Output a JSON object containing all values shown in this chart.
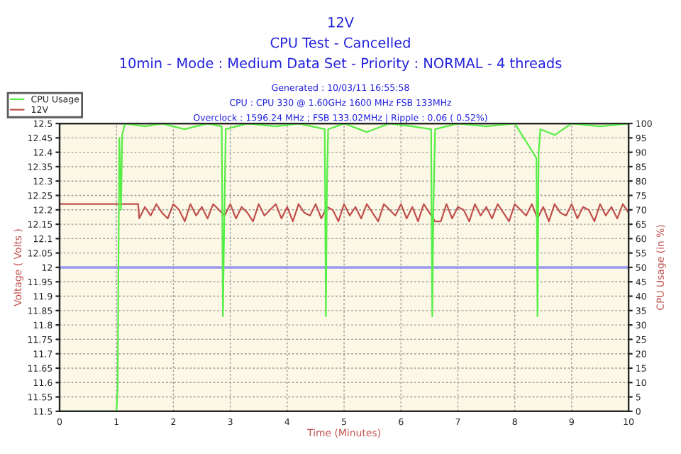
{
  "chart_data": {
    "type": "line",
    "title": "12V",
    "subtitle": "CPU Test - Cancelled",
    "annotations": [
      "10min - Mode : Medium Data Set - Priority : NORMAL - 4 threads",
      "Generated : 10/03/11 16:55:58",
      "CPU : CPU 330 @ 1.60GHz 1600 MHz FSB 133MHz",
      "Overclock : 1596.24 MHz ; FSB 133.02MHz | Ripple : 0.06 ( 0.52%)"
    ],
    "xlabel": "Time (Minutes)",
    "ylabel": "Voltage ( Volts )",
    "y2label": "CPU Usage (in %)",
    "xlim": [
      0,
      10
    ],
    "xticks": [
      0,
      1,
      2,
      3,
      4,
      5,
      6,
      7,
      8,
      9,
      10
    ],
    "ylim": [
      11.5,
      12.5
    ],
    "yticks": [
      11.5,
      11.55,
      11.6,
      11.65,
      11.7,
      11.75,
      11.8,
      11.85,
      11.9,
      11.95,
      {
        "value": 12.0,
        "label": "12"
      },
      12.05,
      12.1,
      12.15,
      12.2,
      12.25,
      12.3,
      12.35,
      12.4,
      12.45,
      12.5
    ],
    "y2lim": [
      0,
      100
    ],
    "y2ticks": [
      0,
      5,
      10,
      15,
      20,
      25,
      30,
      35,
      40,
      45,
      50,
      55,
      60,
      65,
      70,
      75,
      80,
      85,
      90,
      95,
      100
    ],
    "grid": true,
    "legend": "top left",
    "ref_lines": [
      {
        "axis": "y",
        "value": 12,
        "color": "#9999ee"
      }
    ],
    "series": [
      {
        "name": "CPU Usage",
        "color": "#55ee44",
        "axis": "y2",
        "x": [
          0,
          1.0,
          1.02,
          1.05,
          1.08,
          1.1,
          1.15,
          1.5,
          1.8,
          2.2,
          2.6,
          2.85,
          2.87,
          2.89,
          2.92,
          3.3,
          3.8,
          4.2,
          4.66,
          4.68,
          4.7,
          4.72,
          5.0,
          5.4,
          5.8,
          6.2,
          6.53,
          6.55,
          6.57,
          6.6,
          7.0,
          7.5,
          8.0,
          8.38,
          8.4,
          8.42,
          8.45,
          8.7,
          9.0,
          9.5,
          10.0
        ],
        "values": [
          0,
          0,
          8,
          95,
          70,
          96,
          100,
          99,
          100,
          98,
          100,
          99,
          33,
          60,
          98,
          100,
          99,
          100,
          98,
          33,
          80,
          98,
          100,
          97,
          100,
          99,
          98,
          33,
          70,
          98,
          100,
          99,
          100,
          88,
          33,
          90,
          98,
          96,
          100,
          99,
          100
        ]
      },
      {
        "name": "12V",
        "color": "#c0504d",
        "axis": "y",
        "x": [
          0,
          1.38,
          1.4,
          1.5,
          1.6,
          1.7,
          1.8,
          1.9,
          2.0,
          2.1,
          2.2,
          2.3,
          2.4,
          2.5,
          2.6,
          2.7,
          2.8,
          2.9,
          3.0,
          3.1,
          3.2,
          3.3,
          3.4,
          3.5,
          3.6,
          3.7,
          3.8,
          3.9,
          4.0,
          4.1,
          4.2,
          4.3,
          4.4,
          4.5,
          4.6,
          4.7,
          4.8,
          4.9,
          5.0,
          5.1,
          5.2,
          5.3,
          5.4,
          5.5,
          5.6,
          5.7,
          5.8,
          5.9,
          6.0,
          6.1,
          6.2,
          6.3,
          6.4,
          6.5,
          6.6,
          6.7,
          6.8,
          6.9,
          7.0,
          7.1,
          7.2,
          7.3,
          7.4,
          7.5,
          7.6,
          7.7,
          7.8,
          7.9,
          8.0,
          8.1,
          8.2,
          8.3,
          8.4,
          8.5,
          8.6,
          8.7,
          8.8,
          8.9,
          9.0,
          9.1,
          9.2,
          9.3,
          9.4,
          9.5,
          9.6,
          9.7,
          9.8,
          9.9,
          10.0
        ],
        "values": [
          12.22,
          12.22,
          12.17,
          12.21,
          12.18,
          12.22,
          12.19,
          12.17,
          12.22,
          12.2,
          12.16,
          12.22,
          12.18,
          12.21,
          12.17,
          12.22,
          12.2,
          12.18,
          12.22,
          12.17,
          12.21,
          12.19,
          12.16,
          12.22,
          12.18,
          12.2,
          12.22,
          12.17,
          12.21,
          12.16,
          12.22,
          12.19,
          12.18,
          12.22,
          12.17,
          12.21,
          12.2,
          12.16,
          12.22,
          12.18,
          12.21,
          12.17,
          12.22,
          12.19,
          12.16,
          12.22,
          12.2,
          12.18,
          12.22,
          12.17,
          12.21,
          12.16,
          12.22,
          12.19,
          12.16,
          12.16,
          12.22,
          12.17,
          12.21,
          12.2,
          12.16,
          12.22,
          12.18,
          12.21,
          12.17,
          12.22,
          12.19,
          12.16,
          12.22,
          12.2,
          12.18,
          12.22,
          12.17,
          12.21,
          12.16,
          12.22,
          12.19,
          12.18,
          12.22,
          12.17,
          12.21,
          12.2,
          12.16,
          12.22,
          12.18,
          12.21,
          12.17,
          12.22,
          12.19
        ]
      }
    ]
  }
}
